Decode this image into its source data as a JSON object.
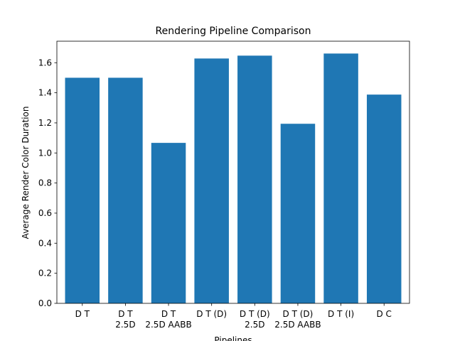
{
  "chart_data": {
    "type": "bar",
    "title": "Rendering Pipeline Comparison",
    "x_label": "Pipelines",
    "y_label": "Average Render Color Duration",
    "categories": [
      "D T",
      "D T\n2.5D",
      "D T\n2.5D AABB",
      "D T (D)",
      "D T (D)\n2.5D",
      "D T (D)\n2.5D AABB",
      "D T (I)",
      "D C"
    ],
    "values": [
      1.5,
      1.5,
      1.067,
      1.628,
      1.647,
      1.194,
      1.661,
      1.388
    ],
    "color": "#1f77b4",
    "ylim": [
      0,
      1.743
    ],
    "yticks": [
      {
        "value": 0,
        "label": "0.0"
      },
      0.2,
      0.4,
      0.6,
      0.8,
      {
        "value": 1,
        "label": "1.0"
      },
      1.2,
      1.4,
      1.6
    ],
    "grid": false
  }
}
